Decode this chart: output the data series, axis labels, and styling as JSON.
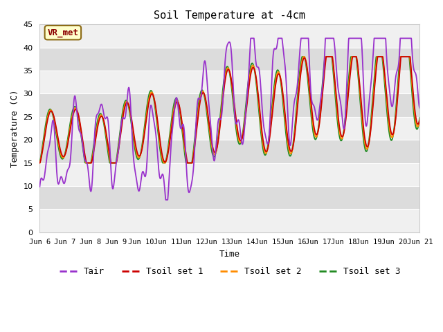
{
  "title": "Soil Temperature at -4cm",
  "xlabel": "Time",
  "ylabel": "Temperature (C)",
  "ylim": [
    0,
    45
  ],
  "yticks": [
    0,
    5,
    10,
    15,
    20,
    25,
    30,
    35,
    40,
    45
  ],
  "xlim_days": [
    0,
    15
  ],
  "x_tick_labels": [
    "Jun 6",
    "Jun 7",
    "Jun 8",
    "Jun 9",
    "Jun 10",
    "Jun 11",
    "Jun 12",
    "Jun 13",
    "Jun 14",
    "Jun 15",
    "Jun 16",
    "Jun 17",
    "Jun 18",
    "Jun 19",
    "Jun 20",
    "Jun 21"
  ],
  "colors": {
    "Tair": "#9932CC",
    "Tsoil1": "#CC0000",
    "Tsoil2": "#FF8C00",
    "Tsoil3": "#228B22"
  },
  "fig_bg": "#FFFFFF",
  "plot_bg": "#FFFFFF",
  "band_color1": "#F0F0F0",
  "band_color2": "#DCDCDC",
  "annotation_text": "VR_met",
  "annotation_bg": "#FFFFCC",
  "annotation_border": "#8B6914"
}
